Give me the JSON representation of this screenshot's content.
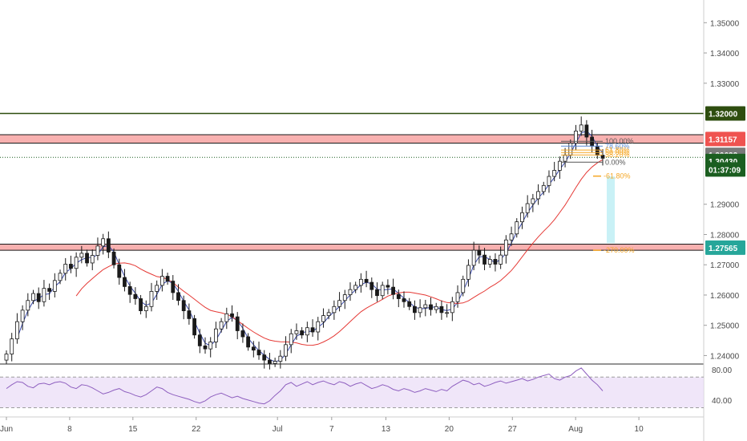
{
  "chart_data": {
    "type": "candlestick",
    "symbol_quote_currency_pair": "",
    "price_axis": {
      "ylim": [
        1.2372,
        1.3575
      ],
      "ticks": [
        "1.35000",
        "1.34000",
        "1.33000",
        "1.29000",
        "1.28000",
        "1.27000",
        "1.26000",
        "1.25000",
        "1.24000"
      ],
      "tick_values": [
        1.35,
        1.34,
        1.33,
        1.29,
        1.28,
        1.27,
        1.26,
        1.25,
        1.24
      ]
    },
    "time_axis": {
      "labels": [
        "Jun",
        "8",
        "15",
        "22",
        "Jul",
        "7",
        "13",
        "20",
        "27",
        "Aug",
        "10"
      ],
      "label_dates": [
        "2020-06-01",
        "2020-06-08",
        "2020-06-15",
        "2020-06-22",
        "2020-07-01",
        "2020-07-07",
        "2020-07-13",
        "2020-07-20",
        "2020-07-27",
        "2020-08-03",
        "2020-08-10"
      ]
    },
    "price_tags": [
      {
        "label": "1.32000",
        "value": 1.32,
        "color": "#2e4d0f"
      },
      {
        "label": "1.31157",
        "value": 1.31157,
        "color": "#ef5350"
      },
      {
        "label": "1.30632",
        "value": 1.30632,
        "color": "#7a7a7a"
      },
      {
        "label": "1.30430",
        "value": 1.3043,
        "color": "#1b5e20"
      },
      {
        "label": "01:37:09",
        "value": 1.3015,
        "color": "#1b5e20"
      },
      {
        "label": "1.27565",
        "value": 1.27565,
        "color": "#26a69a"
      }
    ],
    "horizontal_lines": [
      {
        "value": 1.32,
        "color": "#2e4d0f",
        "style": "solid"
      },
      {
        "value": 1.3055,
        "color": "#1b5e20",
        "style": "dotted"
      }
    ],
    "zones": [
      {
        "from": 1.3102,
        "to": 1.313,
        "color": "#ef5350"
      },
      {
        "from": 1.2748,
        "to": 1.2768,
        "color": "#ef5350"
      }
    ],
    "fib_levels": [
      {
        "label": "100.00%",
        "value": 1.3108,
        "color": "#555555"
      },
      {
        "label": "78.60%",
        "value": 1.3092,
        "color": "#5b8bd6"
      },
      {
        "label": "61.80%",
        "value": 1.3079,
        "color": "#f5a623"
      },
      {
        "label": "50.00%",
        "value": 1.3071,
        "color": "#f5a623"
      },
      {
        "label": "38.20%",
        "value": 1.3063,
        "color": "#f5a623"
      },
      {
        "label": "0.00%",
        "value": 1.3039,
        "color": "#555555"
      },
      {
        "label": "-61.80%",
        "value": 1.2993,
        "color": "#f5a623"
      },
      {
        "label": "-270.00%",
        "value": 1.2748,
        "color": "#f5a623"
      }
    ],
    "target_zone": {
      "from": 1.2992,
      "to": 1.2772,
      "color": "#b2ebf2"
    },
    "candles_approx_close": [
      1.2405,
      1.2455,
      1.2512,
      1.255,
      1.2582,
      1.2605,
      1.2578,
      1.2622,
      1.2612,
      1.2648,
      1.2672,
      1.2702,
      1.2688,
      1.2725,
      1.2738,
      1.2706,
      1.2731,
      1.2762,
      1.2786,
      1.2742,
      1.27,
      1.2658,
      1.2628,
      1.2602,
      1.2588,
      1.2548,
      1.2562,
      1.2612,
      1.2632,
      1.2662,
      1.2646,
      1.2608,
      1.2582,
      1.2548,
      1.2522,
      1.2468,
      1.2432,
      1.2422,
      1.2445,
      1.2488,
      1.2512,
      1.2538,
      1.2528,
      1.2482,
      1.2462,
      1.2428,
      1.2418,
      1.2402,
      1.2385,
      1.2374,
      1.2381,
      1.2398,
      1.2436,
      1.2472,
      1.2482,
      1.2468,
      1.2492,
      1.2478,
      1.2512,
      1.2532,
      1.2542,
      1.2562,
      1.2582,
      1.2601,
      1.2618,
      1.2632,
      1.2652,
      1.2642,
      1.2618,
      1.2598,
      1.2632,
      1.2626,
      1.2602,
      1.2588,
      1.2578,
      1.2562,
      1.2542,
      1.2558,
      1.2568,
      1.2552,
      1.2562,
      1.2542,
      1.2542,
      1.2578,
      1.2608,
      1.2652,
      1.2698,
      1.2748,
      1.2732,
      1.2702,
      1.2718,
      1.2702,
      1.2732,
      1.2782,
      1.2802,
      1.2842,
      1.2872,
      1.2902,
      1.2918,
      1.2942,
      1.2962,
      1.2992,
      1.3012,
      1.3042,
      1.3062,
      1.3102,
      1.3142,
      1.3162,
      1.3122,
      1.3092,
      1.3062,
      1.3052
    ],
    "moving_averages": [
      {
        "color": "#3949ab",
        "period_note": ""
      },
      {
        "color": "#e53935",
        "period_note": ""
      }
    ],
    "rsi_panel": {
      "ticks": [
        "80.00",
        "40.00"
      ],
      "tick_values": [
        80,
        40
      ],
      "band": [
        30,
        70
      ],
      "ylim": [
        20,
        85
      ],
      "line_color": "#8e5fbf",
      "band_color": "#e9dcf7",
      "values_approx": [
        55,
        60,
        64,
        63,
        58,
        56,
        61,
        62,
        60,
        63,
        64,
        62,
        57,
        55,
        60,
        59,
        56,
        52,
        48,
        50,
        53,
        55,
        51,
        49,
        46,
        44,
        47,
        52,
        57,
        55,
        50,
        47,
        45,
        43,
        41,
        38,
        36,
        39,
        44,
        47,
        49,
        46,
        43,
        45,
        42,
        40,
        38,
        36,
        35,
        39,
        46,
        52,
        60,
        63,
        58,
        61,
        64,
        60,
        63,
        65,
        62,
        60,
        64,
        62,
        58,
        61,
        63,
        59,
        55,
        57,
        60,
        58,
        54,
        52,
        55,
        53,
        50,
        52,
        55,
        53,
        51,
        54,
        52,
        58,
        62,
        66,
        64,
        60,
        62,
        58,
        60,
        63,
        65,
        62,
        64,
        66,
        68,
        65,
        67,
        70,
        72,
        74,
        68,
        66,
        70,
        72,
        78,
        82,
        74,
        66,
        60,
        52
      ]
    }
  }
}
